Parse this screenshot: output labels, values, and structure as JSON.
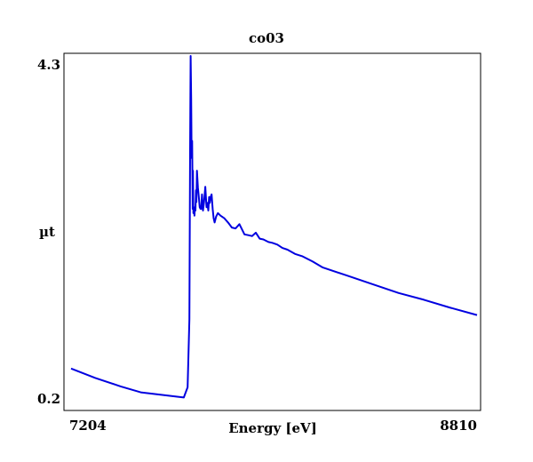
{
  "chart_data": {
    "type": "line",
    "title": "co03",
    "xlabel": "Energy [eV]",
    "ylabel": "µt",
    "xlim": [
      7204,
      8810
    ],
    "ylim": [
      0.2,
      4.3
    ],
    "x_tick_labels": [
      "7204",
      "8810"
    ],
    "y_tick_labels": [
      "4.3",
      "0.2"
    ],
    "grid": false,
    "series": [
      {
        "color": "#0000e0",
        "x": [
          7204,
          7300,
          7400,
          7480,
          7650,
          7665,
          7672,
          7675,
          7677,
          7679,
          7681,
          7683,
          7685,
          7686,
          7688,
          7690,
          7692,
          7694,
          7696,
          7698,
          7700,
          7702,
          7706,
          7710,
          7713,
          7716,
          7719,
          7722,
          7726,
          7730,
          7735,
          7740,
          7743,
          7747,
          7750,
          7753,
          7756,
          7760,
          7764,
          7768,
          7772,
          7778,
          7785,
          7795,
          7810,
          7825,
          7840,
          7855,
          7870,
          7890,
          7905,
          7920,
          7935,
          7950,
          7965,
          7985,
          8000,
          8020,
          8040,
          8060,
          8090,
          8120,
          8160,
          8200,
          8300,
          8400,
          8500,
          8600,
          8700,
          8810
        ],
        "y": [
          0.62,
          0.51,
          0.41,
          0.34,
          0.28,
          0.4,
          1.2,
          3.2,
          4.3,
          3.8,
          3.1,
          3.3,
          2.5,
          2.95,
          2.45,
          2.5,
          2.42,
          2.52,
          2.48,
          2.72,
          2.58,
          2.95,
          2.75,
          2.62,
          2.52,
          2.5,
          2.5,
          2.67,
          2.48,
          2.58,
          2.76,
          2.52,
          2.57,
          2.48,
          2.64,
          2.57,
          2.64,
          2.67,
          2.5,
          2.39,
          2.34,
          2.41,
          2.45,
          2.42,
          2.39,
          2.34,
          2.28,
          2.27,
          2.32,
          2.2,
          2.19,
          2.18,
          2.22,
          2.15,
          2.14,
          2.11,
          2.1,
          2.08,
          2.04,
          2.02,
          1.97,
          1.94,
          1.88,
          1.81,
          1.71,
          1.61,
          1.51,
          1.43,
          1.34,
          1.25
        ]
      }
    ]
  }
}
